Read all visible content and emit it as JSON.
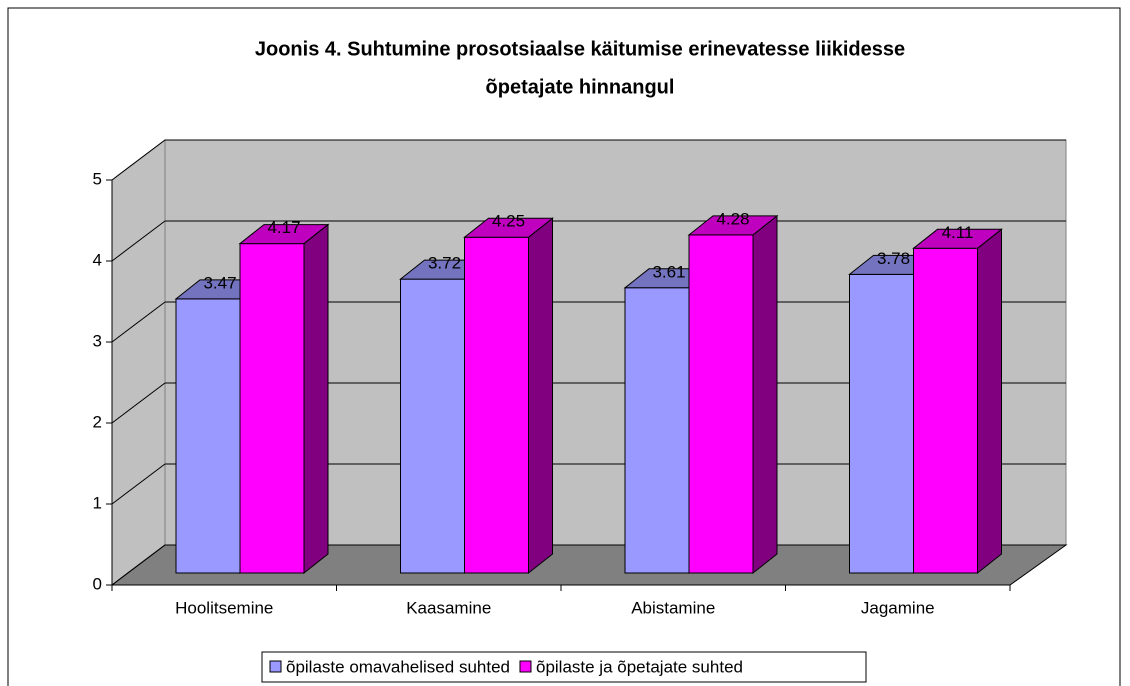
{
  "chart_data": {
    "type": "bar3d",
    "title": [
      "Joonis 4. Suhtumine prosotsiaalse käitumise erinevatesse liikidesse",
      "õpetajate hinnangul"
    ],
    "categories": [
      "Hoolitsemine",
      "Kaasamine",
      "Abistamine",
      "Jagamine"
    ],
    "series": [
      {
        "name": "õpilaste omavahelised suhted",
        "color": "#9999ff",
        "values": [
          3.47,
          3.72,
          3.61,
          3.78
        ]
      },
      {
        "name": "õpilaste ja õpetajate suhted",
        "color": "#ff00ff",
        "values": [
          4.17,
          4.25,
          4.28,
          4.11
        ]
      }
    ],
    "ylim": [
      0,
      5
    ],
    "yticks": [
      0,
      1,
      2,
      3,
      4,
      5
    ],
    "grid": true,
    "legend": "bottom"
  }
}
